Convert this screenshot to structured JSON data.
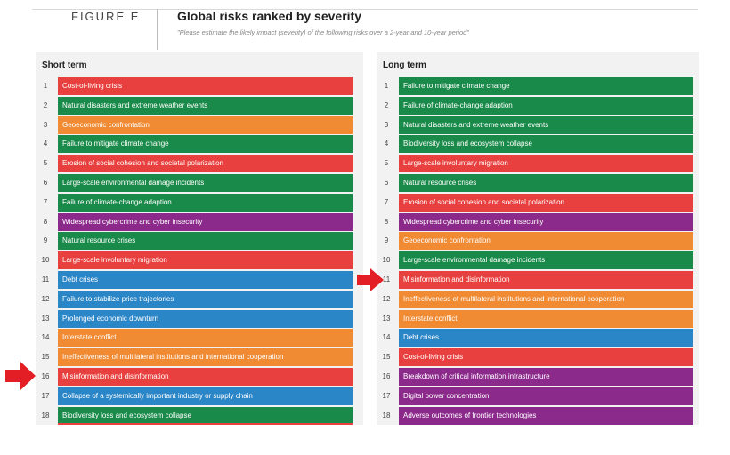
{
  "figure": {
    "label": "FIGURE E",
    "title": "Global risks ranked by severity",
    "subtitle": "\"Please estimate the likely impact (severity) of the following risks over a 2-year and 10-year period\""
  },
  "colors": {
    "societal": "#e8403e",
    "environmental": "#1a8a4a",
    "geopolitical": "#f08a33",
    "technological": "#8c2a8c",
    "economic": "#2b86c8"
  },
  "short_term": {
    "heading": "Short term",
    "items": [
      {
        "rank": "1",
        "label": "Cost-of-living crisis",
        "category": "societal"
      },
      {
        "rank": "2",
        "label": "Natural disasters and extreme weather events",
        "category": "environmental"
      },
      {
        "rank": "3",
        "label": "Geoeconomic confrontation",
        "category": "geopolitical"
      },
      {
        "rank": "4",
        "label": "Failure to mitigate climate change",
        "category": "environmental"
      },
      {
        "rank": "5",
        "label": "Erosion of social cohesion and societal polarization",
        "category": "societal"
      },
      {
        "rank": "6",
        "label": "Large-scale environmental damage incidents",
        "category": "environmental"
      },
      {
        "rank": "7",
        "label": "Failure of climate-change adaption",
        "category": "environmental"
      },
      {
        "rank": "8",
        "label": "Widespread cybercrime and cyber insecurity",
        "category": "technological"
      },
      {
        "rank": "9",
        "label": "Natural resource crises",
        "category": "environmental"
      },
      {
        "rank": "10",
        "label": "Large-scale involuntary migration",
        "category": "societal"
      },
      {
        "rank": "11",
        "label": "Debt crises",
        "category": "economic"
      },
      {
        "rank": "12",
        "label": "Failure to stabilize price trajectories",
        "category": "economic"
      },
      {
        "rank": "13",
        "label": "Prolonged economic downturn",
        "category": "economic"
      },
      {
        "rank": "14",
        "label": "Interstate conflict",
        "category": "geopolitical"
      },
      {
        "rank": "15",
        "label": "Ineffectiveness of multilateral institutions and international cooperation",
        "category": "geopolitical"
      },
      {
        "rank": "16",
        "label": "Misinformation and disinformation",
        "category": "societal"
      },
      {
        "rank": "17",
        "label": "Collapse of a systemically important industry or supply chain",
        "category": "economic"
      },
      {
        "rank": "18",
        "label": "Biodiversity loss and ecosystem collapse",
        "category": "environmental"
      }
    ]
  },
  "long_term": {
    "heading": "Long term",
    "items": [
      {
        "rank": "1",
        "label": "Failure to mitigate climate change",
        "category": "environmental"
      },
      {
        "rank": "2",
        "label": "Failure of climate-change adaption",
        "category": "environmental"
      },
      {
        "rank": "3",
        "label": "Natural disasters and extreme weather events",
        "category": "environmental"
      },
      {
        "rank": "4",
        "label": "Biodiversity loss and ecosystem collapse",
        "category": "environmental"
      },
      {
        "rank": "5",
        "label": "Large-scale involuntary migration",
        "category": "societal"
      },
      {
        "rank": "6",
        "label": "Natural resource crises",
        "category": "environmental"
      },
      {
        "rank": "7",
        "label": "Erosion of social cohesion and societal polarization",
        "category": "societal"
      },
      {
        "rank": "8",
        "label": "Widespread cybercrime and cyber insecurity",
        "category": "technological"
      },
      {
        "rank": "9",
        "label": "Geoeconomic confrontation",
        "category": "geopolitical"
      },
      {
        "rank": "10",
        "label": "Large-scale environmental damage incidents",
        "category": "environmental"
      },
      {
        "rank": "11",
        "label": "Misinformation and disinformation",
        "category": "societal"
      },
      {
        "rank": "12",
        "label": "Ineffectiveness of multilateral institutions and international cooperation",
        "category": "geopolitical"
      },
      {
        "rank": "13",
        "label": "Interstate conflict",
        "category": "geopolitical"
      },
      {
        "rank": "14",
        "label": "Debt crises",
        "category": "economic"
      },
      {
        "rank": "15",
        "label": "Cost-of-living crisis",
        "category": "societal"
      },
      {
        "rank": "16",
        "label": "Breakdown of critical information infrastructure",
        "category": "technological"
      },
      {
        "rank": "17",
        "label": "Digital power concentration",
        "category": "technological"
      },
      {
        "rank": "18",
        "label": "Adverse outcomes of frontier technologies",
        "category": "technological"
      }
    ]
  },
  "bottom_strip": {
    "short_term_category": "societal",
    "long_term_category": "technological"
  },
  "highlight_arrows": [
    {
      "panel": "short_term",
      "rank": "16",
      "color": "#e31e24"
    },
    {
      "panel": "long_term",
      "rank": "11",
      "color": "#e31e24"
    }
  ]
}
